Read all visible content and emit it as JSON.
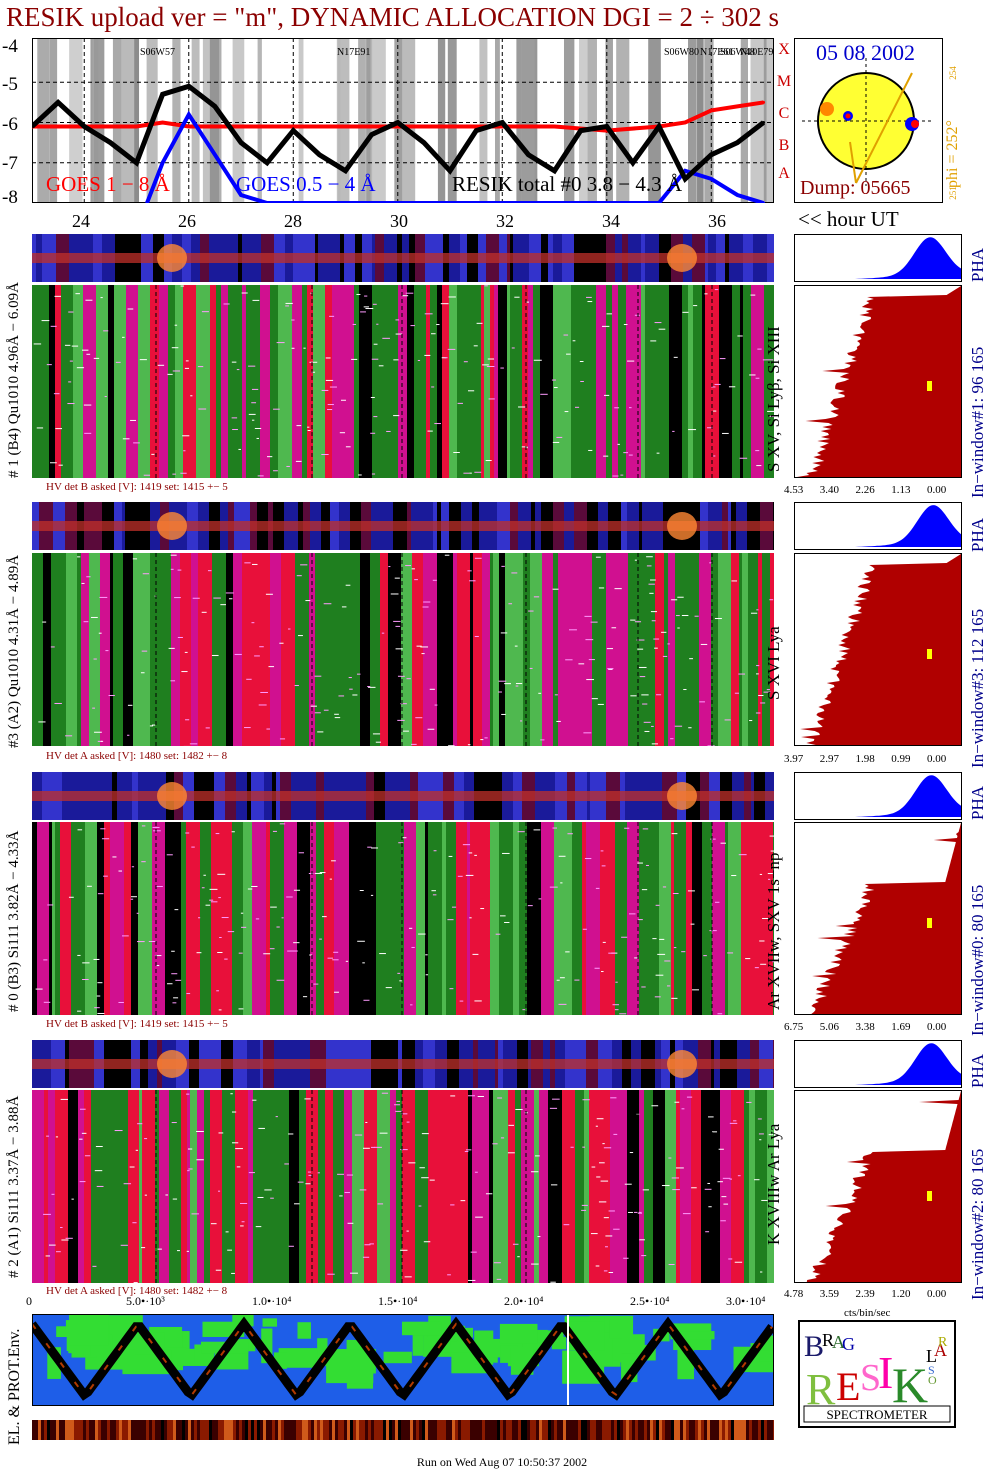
{
  "title": "RESIK upload ver = \"m\", DYNAMIC ALLOCATION  DGI =   2 ÷ 302 s",
  "goes_panel": {
    "y_ticks": [
      "-4",
      "-5",
      "-6",
      "-7",
      "-8"
    ],
    "class_letters": [
      "X",
      "M",
      "C",
      "B",
      "A"
    ],
    "legend": {
      "goes_long": "GOES 1 − 8 Å",
      "goes_short": "GOES 0.5 − 4 Å",
      "resik_total": "RESIK total #0  3.8 − 4.3 Å"
    },
    "region_labels": [
      "S06W57",
      "N17E91",
      "S06W80",
      "N17E61",
      "S06W48",
      "N10E79"
    ],
    "colors": {
      "goes_long": "#ff0000",
      "goes_short": "#0000ff",
      "resik": "#000000"
    }
  },
  "sun_panel": {
    "date": "05 08 2002",
    "phi": "phi = 252°",
    "phi_top": "254",
    "phi_bottom": "251",
    "dump": "Dump: 05665"
  },
  "time_axis": {
    "ticks": [
      "24",
      "26",
      "28",
      "30",
      "32",
      "34",
      "36"
    ],
    "unit_label": "<< hour UT"
  },
  "panels": [
    {
      "left_label": "# 1 (B4) Qu1010 4.96Å − 6.09Å",
      "hv": "HV det B asked [V]:  1419 set:  1415  +−   5",
      "ion_label": "S XV, Si Lyβ, Si XIII",
      "pha_label": "PHA",
      "window_label": "In−window#1:   96 165",
      "x_ticks": [
        "4.53",
        "3.40",
        "2.26",
        "1.13",
        "0.00"
      ]
    },
    {
      "left_label": "#3 (A2) Qu1010  4.31Å − 4.89Å",
      "hv": "HV det A asked [V]:  1480 set:  1482  +−   8",
      "ion_label": "S XVI Lya",
      "pha_label": "PHA",
      "window_label": "In−window#3:   112 165",
      "x_ticks": [
        "3.97",
        "2.97",
        "1.98",
        "0.99",
        "0.00"
      ]
    },
    {
      "left_label": "# 0 (B3) Si111  3.82Å − 4.33Å",
      "hv": "HV det B asked [V]:  1419 set:  1415  +−   5",
      "ion_label": "Ar XVIIw,  SXV 1s−np",
      "pha_label": "PHA",
      "window_label": "In−window#0:   80 165",
      "x_ticks": [
        "6.75",
        "5.06",
        "3.38",
        "1.69",
        "0.00"
      ]
    },
    {
      "left_label": "# 2 (A1) Si111  3.37Å − 3.88Å",
      "hv": "HV det A asked [V]:  1480 set:  1482  +−   8",
      "ion_label": "K XVIIIw  Ar Lya",
      "pha_label": "PHA",
      "window_label": "In−window#2:   80 165",
      "x_ticks": [
        "4.78",
        "3.59",
        "2.39",
        "1.20",
        "0.00"
      ]
    }
  ],
  "bottom_axis": {
    "ticks": [
      "0",
      "5.0•·10³",
      "1.0•·10⁴",
      "1.5•·10⁴",
      "2.0•·10⁴",
      "2.5•·10⁴",
      "3.0•·10⁴"
    ],
    "units": "cts/bin/sec"
  },
  "env_panel": {
    "label": "EL. & PROT.Env."
  },
  "logo": {
    "letters": [
      "B",
      "R",
      "A",
      "G",
      "R",
      "E",
      "S",
      "I",
      "K",
      "S",
      "O",
      "L",
      "A",
      "R"
    ],
    "caption": "SPECTROMETER"
  },
  "footer": "Run on Wed Aug 07 10:50:37 2002",
  "chart_data": {
    "type": "line",
    "title": "RESIK upload ver = \"m\", DYNAMIC ALLOCATION  DGI =   2 ÷ 302 s",
    "xlabel": "hour UT",
    "ylabel": "",
    "xlim": [
      23,
      37.2
    ],
    "ylim": [
      -8,
      -3.9
    ],
    "x_ticks": [
      24,
      26,
      28,
      30,
      32,
      34,
      36
    ],
    "series": [
      {
        "name": "GOES 1 − 8 Å",
        "x": [
          23,
          24,
          25,
          25.5,
          26,
          27,
          28,
          29,
          30,
          31,
          32,
          33,
          34,
          35,
          35.5,
          36,
          36.5,
          37
        ],
        "values": [
          -6.1,
          -6.1,
          -6.1,
          -6.0,
          -6.1,
          -6.1,
          -6.1,
          -6.1,
          -6.1,
          -6.1,
          -6.1,
          -6.1,
          -6.2,
          -6.1,
          -6.0,
          -5.7,
          -5.6,
          -5.5
        ]
      },
      {
        "name": "GOES 0.5 − 4 Å",
        "x": [
          25.2,
          25.5,
          26,
          26.5,
          27,
          27.5,
          35,
          35.5,
          36,
          36.5,
          37
        ],
        "values": [
          -8,
          -7,
          -5.8,
          -6.8,
          -7.8,
          -8,
          -8,
          -7.2,
          -7.4,
          -7.8,
          -8
        ]
      },
      {
        "name": "RESIK total #0  3.8 − 4.3 Å",
        "x": [
          23,
          23.5,
          24,
          24.5,
          25,
          25.5,
          26,
          26.5,
          27,
          27.5,
          28,
          28.5,
          29,
          29.5,
          30,
          30.5,
          31,
          31.5,
          32,
          32.5,
          33,
          33.5,
          34,
          34.5,
          35,
          35.5,
          36,
          36.5,
          37
        ],
        "values": [
          -6.1,
          -5.5,
          -6.1,
          -6.5,
          -7.0,
          -5.3,
          -5.1,
          -5.6,
          -6.5,
          -7.0,
          -6.2,
          -6.8,
          -7.2,
          -6.3,
          -6.0,
          -6.5,
          -7.2,
          -6.2,
          -6.0,
          -6.8,
          -7.2,
          -6.2,
          -6.1,
          -7.0,
          -6.1,
          -7.4,
          -6.8,
          -6.5,
          -6.0
        ]
      }
    ]
  }
}
